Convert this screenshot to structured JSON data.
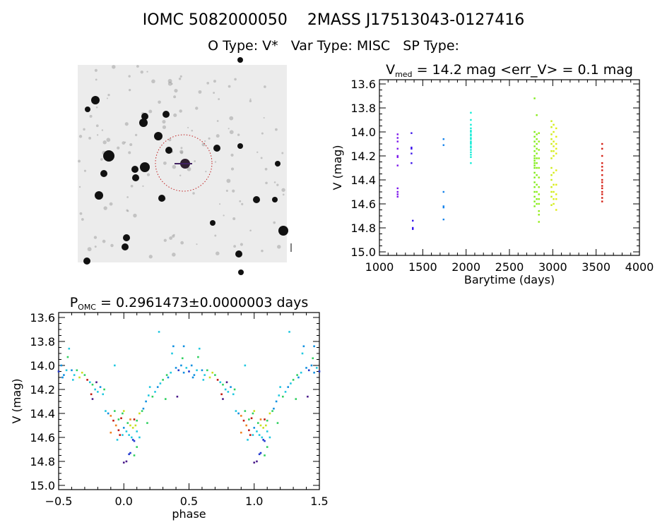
{
  "header": {
    "title": "IOMC 5082000050    2MASS J17513043-0127416",
    "subtitle": "O Type: V*   Var Type: MISC   SP Type:"
  },
  "finder_image": {
    "type": "image",
    "description_icon": "sky-field-finder-chart",
    "marker": "red dotted circle with cross on target"
  },
  "chart_data": [
    {
      "type": "scatter",
      "title": "V_med = 14.2 mag <err_V> = 0.1 mag",
      "title_parts": {
        "main": "V",
        "sub": "med",
        "rest": " = 14.2 mag <err_V> = 0.1 mag"
      },
      "xlabel": "Barytime (days)",
      "ylabel": "V (mag)",
      "xlim": [
        1000,
        4000
      ],
      "ylim": [
        15.0,
        13.6
      ],
      "y_inverted": true,
      "xticks": [
        "1000",
        "1500",
        "2000",
        "2500",
        "3000",
        "3500",
        "4000"
      ],
      "yticks": [
        "13.6",
        "13.8",
        "14.0",
        "14.2",
        "14.4",
        "14.6",
        "14.8",
        "15.0"
      ],
      "grid": false,
      "colormap": "rainbow by time",
      "groups": [
        {
          "t": 1210,
          "mags": [
            14.02,
            14.05,
            14.08,
            14.14,
            14.2,
            14.21,
            14.28,
            14.47,
            14.5,
            14.52,
            14.54
          ]
        },
        {
          "t": 1370,
          "mags": [
            14.01,
            14.13,
            14.14,
            14.18,
            14.26
          ]
        },
        {
          "t": 1385,
          "mags": [
            14.74,
            14.8,
            14.81
          ]
        },
        {
          "t": 1740,
          "mags": [
            14.06,
            14.11,
            14.5,
            14.62,
            14.63,
            14.73
          ]
        },
        {
          "t": 2055,
          "mags": [
            13.84,
            13.9,
            13.94,
            13.97,
            13.99,
            14.0,
            14.02,
            14.03,
            14.05,
            14.06,
            14.08,
            14.09,
            14.1,
            14.12,
            14.13,
            14.15,
            14.17,
            14.19,
            14.21,
            14.26
          ]
        },
        {
          "t": 2790,
          "mags": [
            14.0,
            14.04,
            14.08,
            14.12,
            14.16,
            14.2,
            14.22,
            14.24,
            14.26,
            14.28,
            14.3,
            14.34,
            14.38,
            14.42,
            14.46,
            14.5,
            14.54,
            14.58,
            14.62,
            13.72
          ]
        },
        {
          "t": 2815,
          "mags": [
            14.02,
            14.06,
            14.1,
            14.14,
            14.18,
            14.22,
            14.26,
            14.3,
            14.36,
            14.44,
            14.5,
            14.56,
            14.6,
            13.86
          ]
        },
        {
          "t": 2840,
          "mags": [
            14.01,
            14.08,
            14.15,
            14.22,
            14.3,
            14.38,
            14.46,
            14.52,
            14.56,
            14.6,
            14.66,
            14.69,
            14.75
          ]
        },
        {
          "t": 2985,
          "mags": [
            13.91,
            13.96,
            14.02,
            14.06,
            14.1,
            14.16,
            14.22,
            14.3,
            14.36,
            14.4,
            14.46,
            14.5,
            14.54,
            14.61
          ]
        },
        {
          "t": 3010,
          "mags": [
            13.94,
            14.0,
            14.08,
            14.12,
            14.16,
            14.2,
            14.34,
            14.44,
            14.5,
            14.56,
            14.6
          ]
        },
        {
          "t": 3040,
          "mags": [
            13.97,
            14.04,
            14.1,
            14.14,
            14.18,
            14.32,
            14.44,
            14.52,
            14.56,
            14.65
          ]
        },
        {
          "t": 3570,
          "mags": [
            14.1,
            14.14,
            14.2,
            14.26,
            14.29,
            14.32,
            14.36,
            14.4,
            14.42,
            14.45,
            14.47,
            14.5,
            14.52,
            14.55,
            14.58
          ]
        }
      ]
    },
    {
      "type": "scatter",
      "title": "P_OMC = 0.2961473±0.0000003 days",
      "title_parts": {
        "main": "P",
        "sub": "OMC",
        "rest": " = 0.2961473±0.0000003 days"
      },
      "xlabel": "phase",
      "ylabel": "V (mag)",
      "xlim": [
        -0.5,
        1.5
      ],
      "ylim": [
        15.0,
        13.6
      ],
      "y_inverted": true,
      "xticks": [
        "-0.5",
        "0.0",
        "0.5",
        "1.0",
        "1.5"
      ],
      "yticks": [
        "13.6",
        "13.8",
        "14.0",
        "14.2",
        "14.4",
        "14.6",
        "14.8",
        "15.0"
      ],
      "grid": false,
      "repeat": "phase shown over two cycles",
      "colors": {
        "p": "#4a1a8a",
        "b": "#2038d0",
        "s": "#1090e0",
        "c": "#20c8e0",
        "g": "#30d060",
        "y": "#c8e020",
        "o": "#f08020",
        "r": "#c01810"
      },
      "points": [
        [
          0.0,
          14.81,
          "p"
        ],
        [
          0.02,
          14.8,
          "p"
        ],
        [
          0.04,
          14.74,
          "b"
        ],
        [
          0.05,
          14.73,
          "b"
        ],
        [
          0.07,
          14.62,
          "b"
        ],
        [
          0.08,
          14.63,
          "b"
        ],
        [
          0.0,
          14.52,
          "s"
        ],
        [
          0.02,
          14.55,
          "c"
        ],
        [
          0.04,
          14.58,
          "c"
        ],
        [
          0.06,
          14.6,
          "c"
        ],
        [
          0.03,
          14.48,
          "g"
        ],
        [
          0.05,
          14.5,
          "y"
        ],
        [
          0.07,
          14.52,
          "y"
        ],
        [
          0.09,
          14.5,
          "y"
        ],
        [
          0.1,
          14.46,
          "g"
        ],
        [
          0.12,
          14.4,
          "y"
        ],
        [
          0.14,
          14.38,
          "g"
        ],
        [
          0.1,
          14.55,
          "c"
        ],
        [
          0.12,
          14.6,
          "c"
        ],
        [
          0.1,
          14.68,
          "g"
        ],
        [
          0.08,
          14.75,
          "g"
        ],
        [
          -0.02,
          14.44,
          "r"
        ],
        [
          0.05,
          14.45,
          "o"
        ],
        [
          0.08,
          14.45,
          "r"
        ],
        [
          -0.01,
          14.4,
          "g"
        ],
        [
          0.0,
          14.38,
          "y"
        ],
        [
          0.17,
          14.3,
          "s"
        ],
        [
          0.19,
          14.25,
          "c"
        ],
        [
          0.2,
          14.18,
          "c"
        ],
        [
          0.22,
          14.26,
          "g"
        ],
        [
          0.24,
          14.22,
          "c"
        ],
        [
          0.26,
          14.18,
          "s"
        ],
        [
          0.28,
          14.15,
          "c"
        ],
        [
          0.3,
          14.12,
          "g"
        ],
        [
          0.32,
          14.28,
          "g"
        ],
        [
          0.34,
          14.1,
          "s"
        ],
        [
          0.36,
          14.06,
          "c"
        ],
        [
          0.27,
          13.72,
          "c"
        ],
        [
          0.38,
          13.84,
          "s"
        ],
        [
          0.37,
          13.9,
          "c"
        ],
        [
          0.4,
          14.02,
          "s"
        ],
        [
          0.42,
          14.04,
          "b"
        ],
        [
          0.44,
          14.0,
          "s"
        ],
        [
          0.46,
          14.06,
          "s"
        ],
        [
          0.48,
          14.02,
          "c"
        ],
        [
          0.5,
          14.05,
          "b"
        ],
        [
          0.52,
          14.0,
          "s"
        ],
        [
          0.54,
          14.08,
          "s"
        ],
        [
          0.56,
          14.04,
          "c"
        ],
        [
          0.46,
          13.84,
          "s"
        ],
        [
          0.45,
          13.94,
          "g"
        ],
        [
          0.58,
          13.86,
          "c"
        ],
        [
          0.57,
          13.93,
          "g"
        ],
        [
          0.6,
          14.04,
          "s"
        ],
        [
          0.62,
          14.08,
          "c"
        ],
        [
          0.64,
          14.04,
          "g"
        ],
        [
          0.66,
          14.1,
          "y"
        ],
        [
          0.68,
          14.06,
          "y"
        ],
        [
          0.7,
          14.08,
          "g"
        ],
        [
          0.72,
          14.12,
          "r"
        ],
        [
          0.74,
          14.14,
          "c"
        ],
        [
          0.76,
          14.16,
          "g"
        ],
        [
          0.78,
          14.2,
          "c"
        ],
        [
          0.8,
          14.22,
          "c"
        ],
        [
          0.82,
          14.18,
          "s"
        ],
        [
          0.84,
          14.24,
          "c"
        ],
        [
          0.75,
          14.24,
          "r"
        ],
        [
          0.79,
          14.14,
          "p"
        ],
        [
          0.86,
          14.38,
          "c"
        ],
        [
          0.88,
          14.4,
          "s"
        ],
        [
          0.9,
          14.42,
          "o"
        ],
        [
          0.92,
          14.46,
          "r"
        ],
        [
          0.94,
          14.5,
          "o"
        ],
        [
          0.96,
          14.54,
          "r"
        ],
        [
          0.9,
          14.56,
          "o"
        ],
        [
          0.93,
          14.38,
          "g"
        ],
        [
          0.95,
          14.62,
          "c"
        ],
        [
          0.97,
          14.58,
          "r"
        ],
        [
          0.93,
          14.0,
          "c"
        ],
        [
          0.99,
          14.58,
          "c"
        ],
        [
          0.41,
          14.26,
          "p"
        ],
        [
          0.76,
          14.28,
          "p"
        ],
        [
          0.61,
          14.12,
          "c"
        ],
        [
          0.53,
          14.1,
          "s"
        ],
        [
          0.33,
          14.08,
          "g"
        ],
        [
          0.15,
          14.36,
          "s"
        ],
        [
          0.18,
          14.48,
          "g"
        ],
        [
          0.85,
          14.2,
          "g"
        ],
        [
          0.96,
          14.45,
          "g"
        ]
      ]
    }
  ]
}
